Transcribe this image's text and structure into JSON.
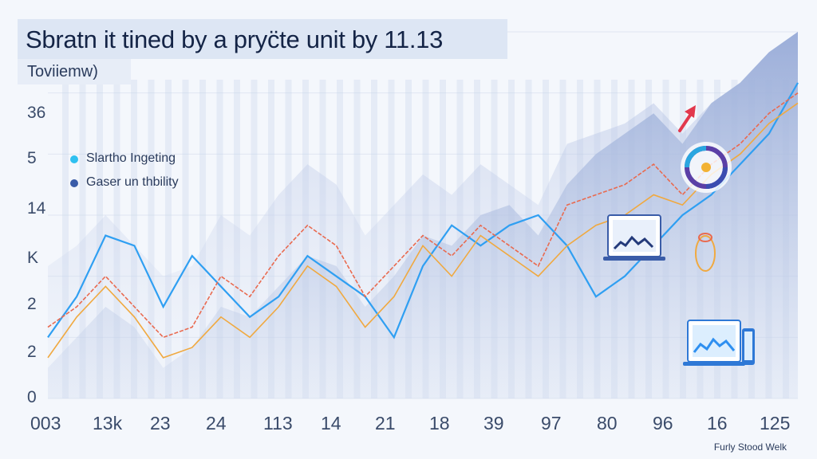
{
  "header": {
    "title": "Sbratn it tined by a pryc̈te unit by 11.13",
    "subtitle": "Toviiemw)"
  },
  "footer": {
    "text": "Furly Stood Welk"
  },
  "icons": [
    "laptop-icon",
    "monitor-tablet-icon",
    "circular-badge-icon",
    "arrow-up-icon"
  ],
  "colors": {
    "series1": "#2f9ff2",
    "series2": "#e96a4f",
    "series3": "#f0a940",
    "area_dark": "#7f98cc",
    "area_light": "#c5d1ea",
    "accent_arrow": "#e2384d"
  },
  "chart_data": {
    "type": "area",
    "grid": true,
    "legend_position": "top-left",
    "y_ticks": [
      "0",
      "2",
      "2",
      "K",
      "14",
      "5",
      "36"
    ],
    "x_ticks": [
      "003",
      "13k",
      "23",
      "24",
      "113",
      "14",
      "21",
      "18",
      "39",
      "97",
      "80",
      "96",
      "16",
      "125"
    ],
    "ylim": [
      0,
      36
    ],
    "x": [
      0,
      1,
      2,
      3,
      4,
      5,
      6,
      7,
      8,
      9,
      10,
      11,
      12,
      13,
      14,
      15,
      16,
      17,
      18,
      19,
      20,
      21,
      22,
      23,
      24,
      25,
      26
    ],
    "series": [
      {
        "name": "Slartho Ingeting",
        "values": [
          6,
          10,
          16,
          15,
          9,
          14,
          11,
          8,
          10,
          14,
          12,
          10,
          6,
          13,
          17,
          15,
          17,
          18,
          15,
          10,
          12,
          15,
          18,
          20,
          23,
          26,
          31
        ]
      },
      {
        "name": "Gaser un thbility",
        "values": [
          7,
          9,
          12,
          9,
          6,
          7,
          12,
          10,
          14,
          17,
          15,
          10,
          13,
          16,
          14,
          17,
          15,
          13,
          19,
          20,
          21,
          23,
          20,
          23,
          25,
          28,
          30
        ]
      },
      {
        "values": [
          4,
          8,
          11,
          8,
          4,
          5,
          8,
          6,
          9,
          13,
          11,
          7,
          10,
          15,
          12,
          16,
          14,
          12,
          15,
          17,
          18,
          20,
          19,
          22,
          24,
          27,
          29
        ]
      },
      {
        "values": [
          3,
          6,
          9,
          7,
          3,
          5,
          9,
          8,
          11,
          14,
          13,
          9,
          12,
          16,
          15,
          18,
          19,
          16,
          21,
          24,
          26,
          28,
          25,
          29,
          31,
          34,
          36
        ]
      }
    ]
  }
}
